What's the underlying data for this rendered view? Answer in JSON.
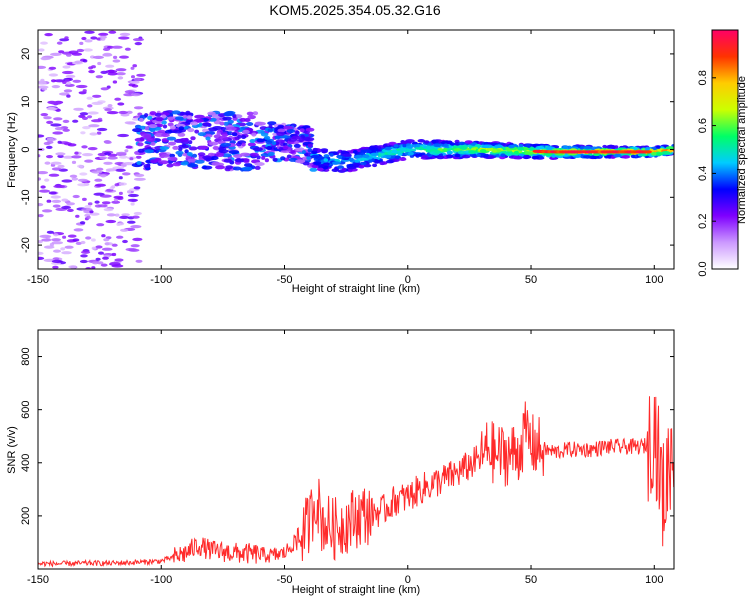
{
  "title": "KOM5.2025.354.05.32.G16",
  "chart_data": [
    {
      "type": "heatmap",
      "name": "spectrogram",
      "xlabel": "Height of straight line (km)",
      "ylabel": "Frequency (Hz)",
      "xlim": [
        -150,
        108
      ],
      "ylim": [
        -25,
        25
      ],
      "xticks": [
        "-150",
        "-100",
        "-50",
        "0",
        "50",
        "100"
      ],
      "yticks": [
        "-20",
        "-10",
        "0",
        "10",
        "20"
      ],
      "colorbar": {
        "label": "Normalized spectral amplitude",
        "range": [
          0,
          1
        ],
        "ticks": [
          "0.0",
          "0.2",
          "0.4",
          "0.6",
          "0.8"
        ],
        "colors": [
          "#ffffff",
          "#cc99ff",
          "#7f00ff",
          "#0000ff",
          "#00ccff",
          "#00ff66",
          "#ccff00",
          "#ffcc00",
          "#ff3300",
          "#ff0066"
        ]
      },
      "ridge": [
        {
          "x": -110,
          "y": 2
        },
        {
          "x": -50,
          "y": 1.5
        },
        {
          "x": -40,
          "y": 1
        },
        {
          "x": -37,
          "y": -2
        },
        {
          "x": -25,
          "y": -2.5
        },
        {
          "x": -10,
          "y": -1
        },
        {
          "x": 0,
          "y": 0
        },
        {
          "x": 25,
          "y": 0
        },
        {
          "x": 60,
          "y": -0.5
        },
        {
          "x": 100,
          "y": -0.5
        },
        {
          "x": 108,
          "y": 0
        }
      ]
    },
    {
      "type": "line",
      "name": "snr",
      "xlabel": "Height of straight line (km)",
      "ylabel": "SNR (v/v)",
      "xlim": [
        -150,
        108
      ],
      "ylim": [
        0,
        900
      ],
      "xticks": [
        "-150",
        "-100",
        "-50",
        "0",
        "50",
        "100"
      ],
      "yticks": [
        "200",
        "400",
        "600",
        "800"
      ],
      "color": "#ff2a2a",
      "series": [
        {
          "x": [
            -150,
            -140,
            -130,
            -120,
            -110,
            -100,
            -90,
            -85,
            -80,
            -70,
            -60,
            -55,
            -50,
            -45,
            -40,
            -37,
            -35,
            -30,
            -25,
            -20,
            -15,
            -10,
            -5,
            0,
            5,
            10,
            15,
            20,
            25,
            30,
            33,
            35,
            40,
            45,
            48,
            50,
            55,
            60,
            65,
            70,
            75,
            80,
            85,
            90,
            95,
            98,
            100,
            102,
            104,
            106,
            108
          ],
          "y": [
            20,
            20,
            22,
            22,
            25,
            30,
            60,
            90,
            70,
            60,
            55,
            50,
            60,
            110,
            170,
            280,
            180,
            150,
            175,
            200,
            210,
            220,
            260,
            270,
            300,
            320,
            340,
            360,
            390,
            420,
            460,
            430,
            430,
            440,
            520,
            470,
            450,
            440,
            450,
            450,
            450,
            460,
            460,
            460,
            460,
            470,
            550,
            380,
            250,
            420,
            460
          ]
        }
      ]
    }
  ]
}
